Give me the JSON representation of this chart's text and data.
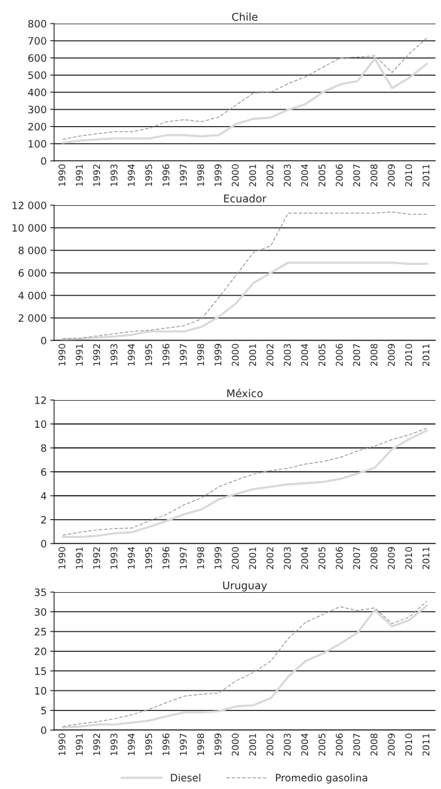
{
  "chart_data": [
    {
      "type": "line",
      "title": "Chile",
      "categories": [
        "1990",
        "1991",
        "1992",
        "1993",
        "1994",
        "1995",
        "1996",
        "1997",
        "1998",
        "1999",
        "2000",
        "2001",
        "2002",
        "2003",
        "2004",
        "2005",
        "2006",
        "2007",
        "2008",
        "2009",
        "2010",
        "2011"
      ],
      "series": [
        {
          "color": "#d9d9d9",
          "line_style": "solid",
          "values": [
            105,
            118,
            125,
            130,
            130,
            130,
            150,
            150,
            143,
            150,
            215,
            245,
            252,
            298,
            330,
            400,
            445,
            465,
            595,
            425,
            485,
            565
          ]
        },
        {
          "color": "#999999",
          "line_style": "dashed",
          "values": [
            125,
            145,
            158,
            170,
            170,
            190,
            228,
            240,
            228,
            255,
            325,
            395,
            400,
            450,
            490,
            545,
            600,
            605,
            612,
            515,
            625,
            715
          ]
        }
      ],
      "ylim": [
        0,
        800
      ],
      "yticks": [
        0,
        100,
        200,
        300,
        400,
        500,
        600,
        700,
        800
      ],
      "grid": "y"
    },
    {
      "type": "line",
      "title": "Ecuador",
      "categories": [
        "1990",
        "1991",
        "1992",
        "1993",
        "1994",
        "1995",
        "1996",
        "1997",
        "1998",
        "1999",
        "2000",
        "2001",
        "2002",
        "2003",
        "2004",
        "2005",
        "2006",
        "2007",
        "2008",
        "2009",
        "2010",
        "2011"
      ],
      "series": [
        {
          "color": "#d9d9d9",
          "line_style": "solid",
          "values": [
            100,
            150,
            250,
            350,
            500,
            800,
            800,
            800,
            1200,
            2100,
            3300,
            5100,
            6000,
            6900,
            6900,
            6900,
            6900,
            6900,
            6900,
            6900,
            6800,
            6800
          ]
        },
        {
          "color": "#999999",
          "line_style": "dashed",
          "values": [
            150,
            200,
            400,
            600,
            800,
            900,
            1100,
            1300,
            1900,
            3800,
            5800,
            7800,
            8400,
            11300,
            11300,
            11300,
            11300,
            11300,
            11300,
            11400,
            11200,
            11200
          ]
        }
      ],
      "ylim": [
        0,
        12000
      ],
      "yticks": [
        0,
        {
          "value": 2000,
          "label": "2 000"
        },
        {
          "value": 4000,
          "label": "4 000"
        },
        {
          "value": 6000,
          "label": "6 000"
        },
        {
          "value": 8000,
          "label": "8 000"
        },
        {
          "value": 10000,
          "label": "10 000"
        },
        {
          "value": 12000,
          "label": "12 000"
        }
      ],
      "grid": "y"
    },
    {
      "type": "line",
      "title": "México",
      "categories": [
        "1990",
        "1991",
        "1992",
        "1993",
        "1994",
        "1995",
        "1996",
        "1997",
        "1998",
        "1999",
        "2000",
        "2001",
        "2002",
        "2003",
        "2004",
        "2005",
        "2006",
        "2007",
        "2008",
        "2009",
        "2010",
        "2011"
      ],
      "series": [
        {
          "color": "#d9d9d9",
          "line_style": "solid",
          "values": [
            0.55,
            0.55,
            0.65,
            0.85,
            0.95,
            1.4,
            1.9,
            2.45,
            2.85,
            3.7,
            4.15,
            4.55,
            4.75,
            4.95,
            5.05,
            5.15,
            5.4,
            5.85,
            6.35,
            7.9,
            8.75,
            9.45
          ]
        },
        {
          "color": "#999999",
          "line_style": "dashed",
          "values": [
            0.7,
            0.95,
            1.15,
            1.25,
            1.3,
            1.9,
            2.45,
            3.25,
            3.8,
            4.75,
            5.3,
            5.8,
            6.1,
            6.3,
            6.65,
            6.85,
            7.2,
            7.75,
            8.15,
            8.7,
            9.1,
            9.65
          ]
        }
      ],
      "ylim": [
        0,
        12
      ],
      "yticks": [
        0,
        2,
        4,
        6,
        8,
        10,
        12
      ],
      "grid": "y"
    },
    {
      "type": "line",
      "title": "Uruguay",
      "categories": [
        "1990",
        "1991",
        "1992",
        "1993",
        "1994",
        "1995",
        "1996",
        "1997",
        "1998",
        "1999",
        "2000",
        "2001",
        "2002",
        "2003",
        "2004",
        "2005",
        "2006",
        "2007",
        "2008",
        "2009",
        "2010",
        "2011"
      ],
      "series": [
        {
          "name": "Diesel",
          "color": "#d9d9d9",
          "line_style": "solid",
          "values": [
            0.6,
            0.9,
            1.4,
            1.4,
            1.9,
            2.4,
            3.5,
            4.5,
            4.5,
            4.8,
            6.0,
            6.3,
            8.1,
            13.5,
            17.5,
            19.4,
            21.9,
            24.7,
            30.4,
            26.3,
            27.9,
            31.6
          ]
        },
        {
          "name": "Promedio gasolina",
          "color": "#999999",
          "line_style": "dashed",
          "values": [
            0.9,
            1.6,
            2.1,
            2.9,
            3.9,
            5.3,
            7.0,
            8.6,
            9.1,
            9.4,
            12.5,
            14.6,
            17.5,
            23.2,
            27.3,
            29.3,
            31.3,
            30.3,
            31.0,
            27.0,
            28.7,
            32.7
          ]
        }
      ],
      "ylim": [
        0,
        35
      ],
      "yticks": [
        0,
        5,
        10,
        15,
        20,
        25,
        30,
        35
      ],
      "grid": "y",
      "legend": "bottom"
    }
  ]
}
